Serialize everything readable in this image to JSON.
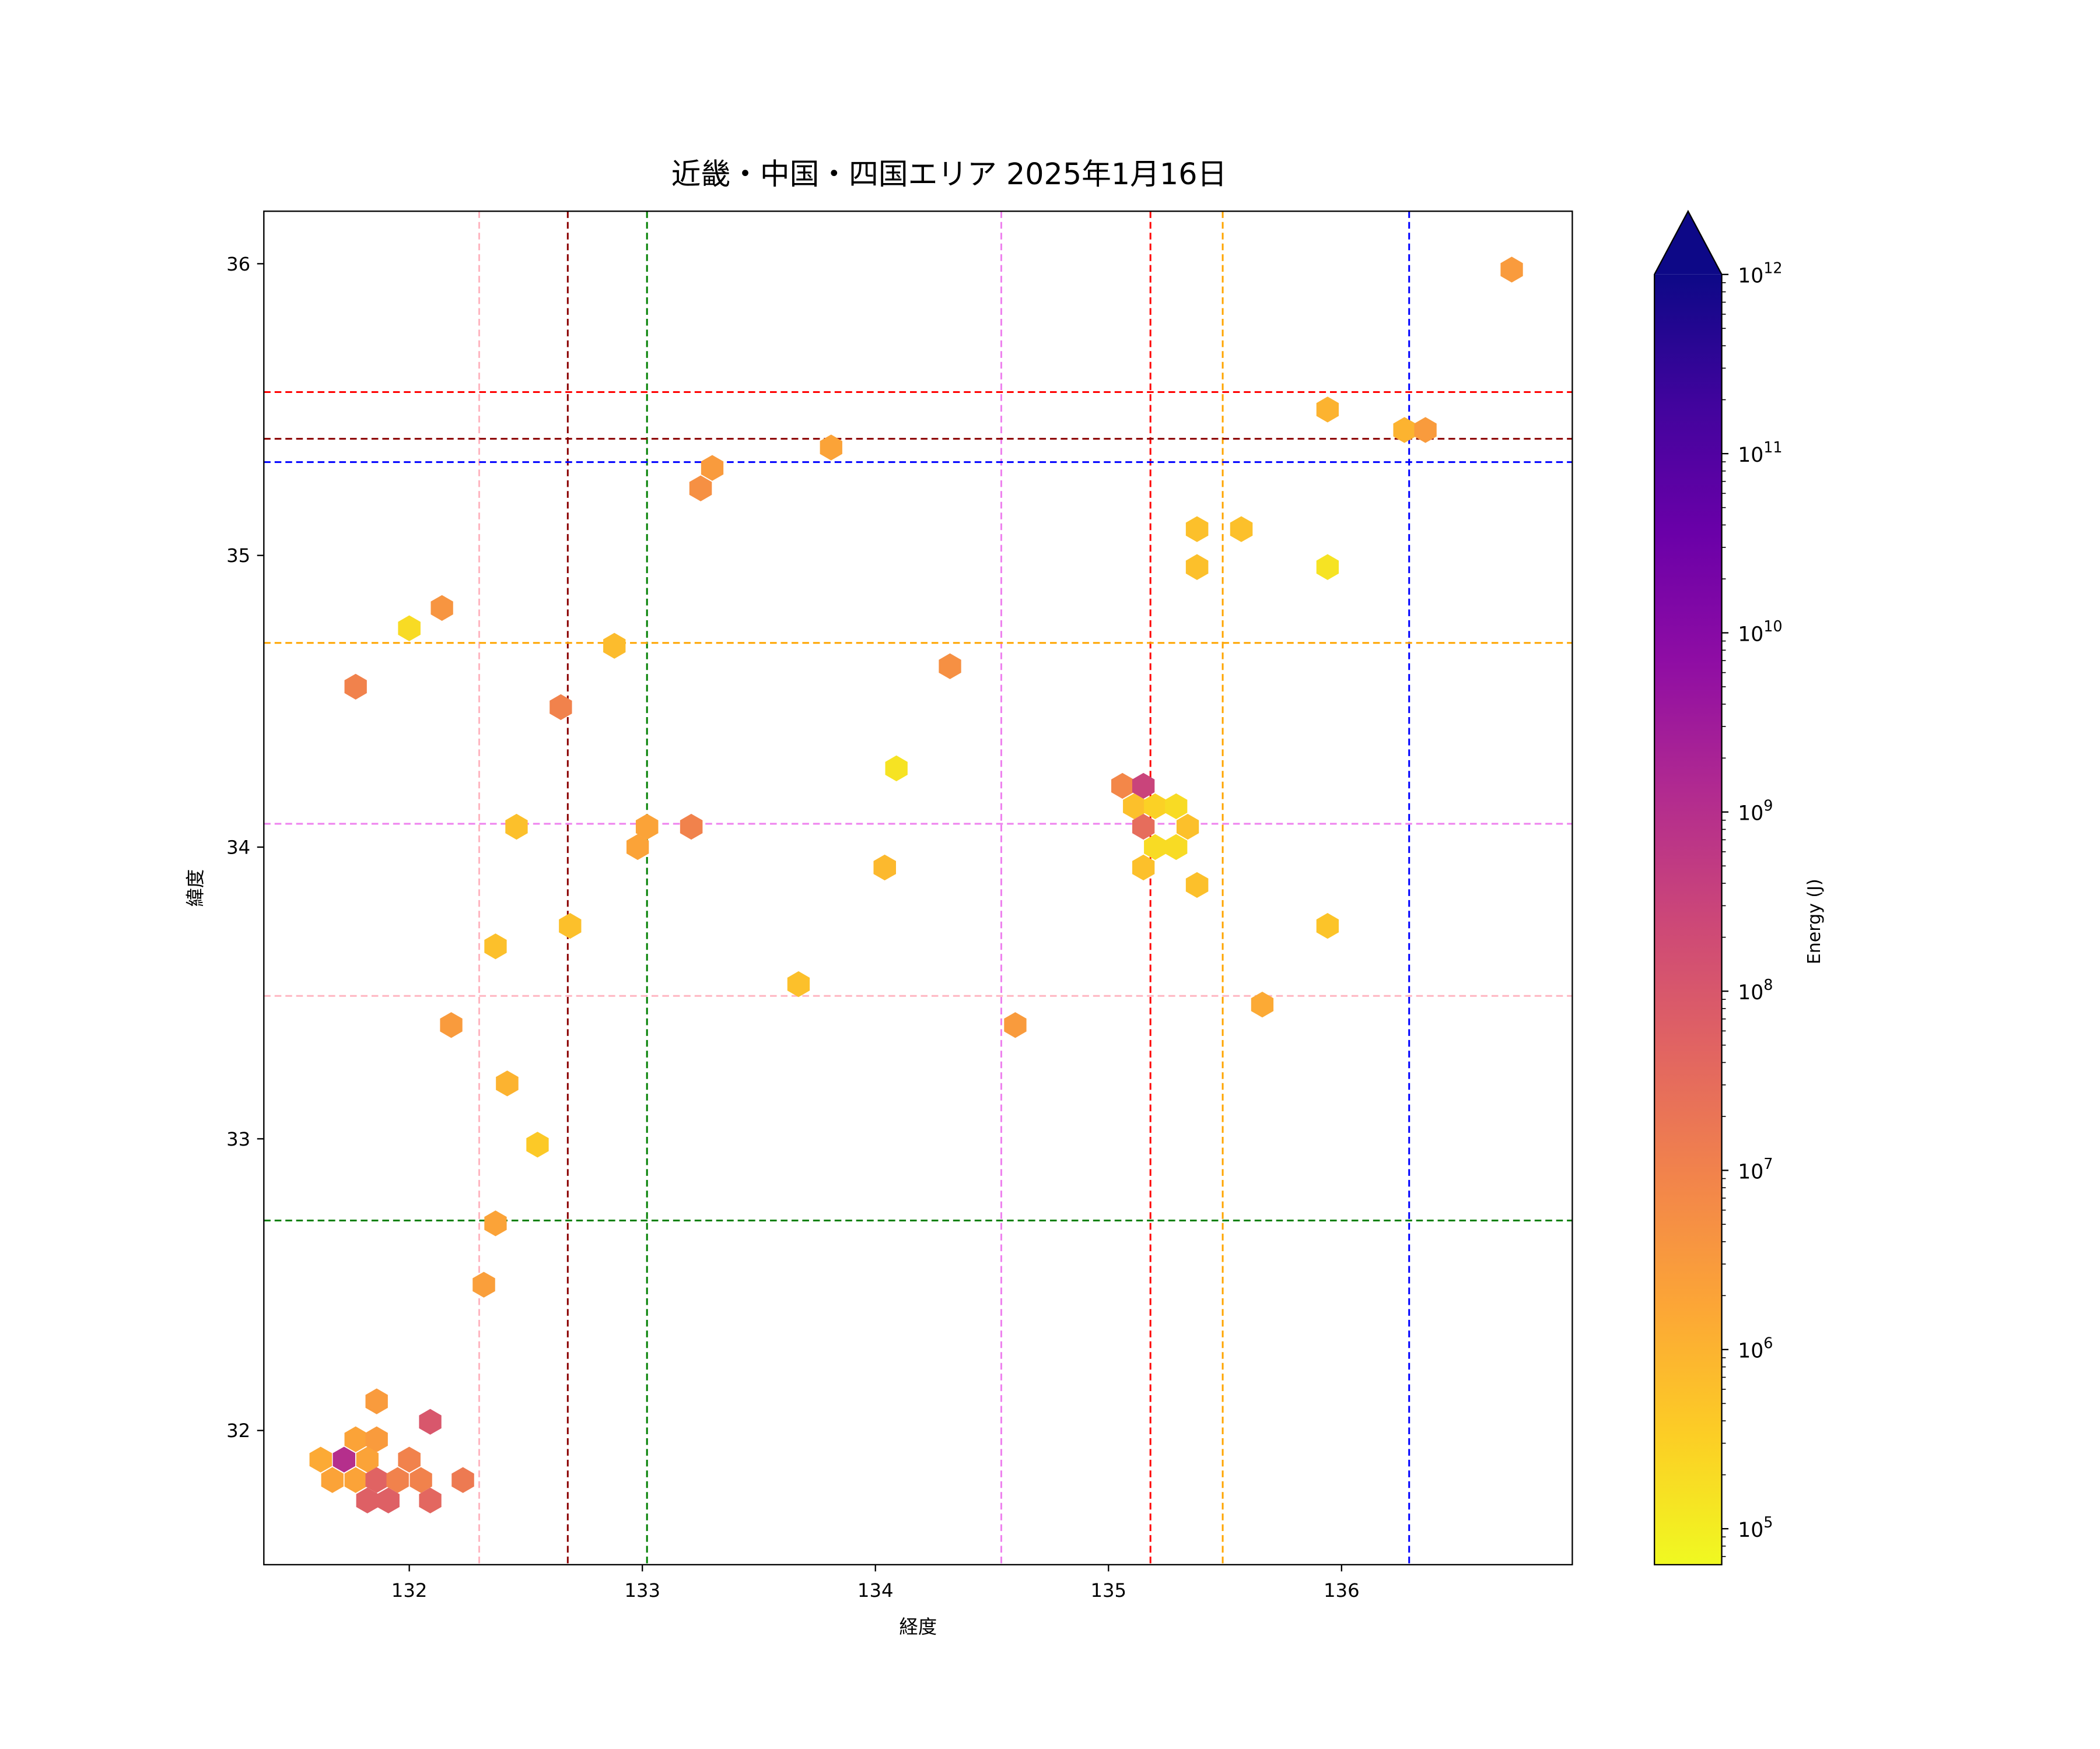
{
  "chart_data": {
    "type": "hexbin",
    "title": "近畿・中国・四国エリア 2025年1月16日",
    "xlabel": "経度",
    "ylabel": "緯度",
    "xlim": [
      131.376,
      136.99
    ],
    "ylim": [
      31.54,
      36.18
    ],
    "xticks": [
      132,
      133,
      134,
      135,
      136
    ],
    "yticks": [
      32,
      33,
      34,
      35,
      36
    ],
    "grid": false,
    "colorbar": {
      "label": "Energy (J)",
      "scale": "log",
      "range": [
        63000,
        1000000000000
      ],
      "extend": "max",
      "ticks": [
        100000,
        1000000,
        10000000,
        100000000,
        1000000000,
        10000000000,
        100000000000,
        1000000000000
      ],
      "tick_labels": [
        "10^5",
        "10^6",
        "10^7",
        "10^8",
        "10^9",
        "10^10",
        "10^11",
        "10^12"
      ]
    },
    "vlines": [
      {
        "x": 132.3,
        "color": "#ffb6c1"
      },
      {
        "x": 132.68,
        "color": "#8b0000"
      },
      {
        "x": 133.02,
        "color": "#008000"
      },
      {
        "x": 134.54,
        "color": "#ee82ee"
      },
      {
        "x": 135.18,
        "color": "#ff0000"
      },
      {
        "x": 135.49,
        "color": "#ffa500"
      },
      {
        "x": 136.29,
        "color": "#0000ff"
      }
    ],
    "hlines": [
      {
        "y": 35.56,
        "color": "#ff0000"
      },
      {
        "y": 35.4,
        "color": "#8b0000"
      },
      {
        "y": 35.32,
        "color": "#0000ff"
      },
      {
        "y": 34.7,
        "color": "#ffa500"
      },
      {
        "y": 34.08,
        "color": "#ee82ee"
      },
      {
        "y": 33.49,
        "color": "#ffb6c1"
      },
      {
        "y": 32.72,
        "color": "#008000"
      }
    ],
    "hexbins": [
      [
        136.73,
        35.98,
        3000000.0
      ],
      [
        135.94,
        35.5,
        1000000.0
      ],
      [
        136.27,
        35.43,
        1000000.0
      ],
      [
        136.36,
        35.43,
        3000000.0
      ],
      [
        133.81,
        35.37,
        2000000.0
      ],
      [
        133.3,
        35.3,
        3000000.0
      ],
      [
        133.25,
        35.23,
        5000000.0
      ],
      [
        135.38,
        35.09,
        600000.0
      ],
      [
        135.57,
        35.09,
        600000.0
      ],
      [
        135.38,
        34.96,
        600000.0
      ],
      [
        135.94,
        34.96,
        150000.0
      ],
      [
        132.14,
        34.82,
        4000000.0
      ],
      [
        132.0,
        34.75,
        200000.0
      ],
      [
        132.88,
        34.69,
        700000.0
      ],
      [
        134.32,
        34.62,
        5000000.0
      ],
      [
        131.77,
        34.55,
        10000000.0
      ],
      [
        132.65,
        34.48,
        10000000.0
      ],
      [
        134.09,
        34.27,
        150000.0
      ],
      [
        135.06,
        34.21,
        8000000.0
      ],
      [
        135.15,
        34.21,
        300000000.0
      ],
      [
        135.11,
        34.14,
        600000.0
      ],
      [
        135.2,
        34.14,
        300000.0
      ],
      [
        135.29,
        34.14,
        200000.0
      ],
      [
        135.15,
        34.07,
        30000000.0
      ],
      [
        135.34,
        34.07,
        600000.0
      ],
      [
        132.46,
        34.07,
        600000.0
      ],
      [
        133.02,
        34.07,
        2000000.0
      ],
      [
        133.21,
        34.07,
        10000000.0
      ],
      [
        132.98,
        34.0,
        2000000.0
      ],
      [
        135.2,
        34.0,
        200000.0
      ],
      [
        135.29,
        34.0,
        200000.0
      ],
      [
        135.15,
        33.93,
        600000.0
      ],
      [
        134.04,
        33.93,
        800000.0
      ],
      [
        135.38,
        33.87,
        600000.0
      ],
      [
        132.69,
        33.73,
        600000.0
      ],
      [
        135.94,
        33.73,
        500000.0
      ],
      [
        132.37,
        33.66,
        600000.0
      ],
      [
        133.67,
        33.53,
        600000.0
      ],
      [
        135.66,
        33.46,
        1500000.0
      ],
      [
        132.18,
        33.39,
        3000000.0
      ],
      [
        134.6,
        33.39,
        3000000.0
      ],
      [
        132.42,
        33.19,
        1000000.0
      ],
      [
        132.55,
        32.98,
        400000.0
      ],
      [
        132.37,
        32.71,
        2000000.0
      ],
      [
        132.32,
        32.5,
        2500000.0
      ],
      [
        131.86,
        32.1,
        3000000.0
      ],
      [
        132.09,
        32.03,
        100000000.0
      ],
      [
        131.62,
        31.9,
        1500000.0
      ],
      [
        131.72,
        31.9,
        1000000000.0
      ],
      [
        131.77,
        31.97,
        2000000.0
      ],
      [
        131.86,
        31.97,
        3000000.0
      ],
      [
        131.82,
        31.9,
        2000000.0
      ],
      [
        132.0,
        31.9,
        10000000.0
      ],
      [
        131.67,
        31.83,
        2000000.0
      ],
      [
        131.77,
        31.83,
        2000000.0
      ],
      [
        131.86,
        31.83,
        50000000.0
      ],
      [
        131.95,
        31.83,
        10000000.0
      ],
      [
        132.05,
        31.83,
        10000000.0
      ],
      [
        132.23,
        31.83,
        15000000.0
      ],
      [
        131.82,
        31.76,
        60000000.0
      ],
      [
        131.91,
        31.76,
        60000000.0
      ],
      [
        132.09,
        31.76,
        40000000.0
      ]
    ]
  }
}
